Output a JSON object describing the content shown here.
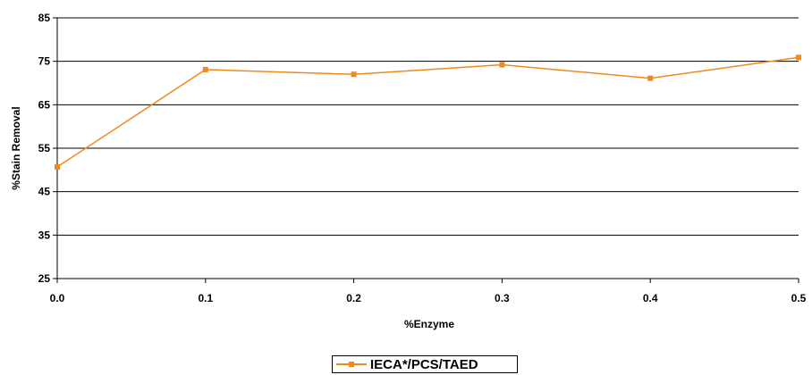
{
  "chart_data": {
    "type": "line",
    "xlabel": "%Enzyme",
    "ylabel": "%Stain Removal",
    "xlim": [
      0.0,
      0.5
    ],
    "ylim": [
      25,
      85
    ],
    "x_ticks": [
      "0.0",
      "0.1",
      "0.2",
      "0.3",
      "0.4",
      "0.5"
    ],
    "y_ticks": [
      "25",
      "35",
      "45",
      "55",
      "65",
      "75",
      "85"
    ],
    "grid": "horizontal",
    "legend_position": "bottom-center",
    "series": [
      {
        "name": "IECA*/PCS/TAED",
        "color": "#f08a1e",
        "x": [
          0.0,
          0.1,
          0.2,
          0.3,
          0.4,
          0.5
        ],
        "y": [
          50.7,
          73.1,
          72.0,
          74.2,
          71.1,
          75.9
        ]
      }
    ]
  }
}
